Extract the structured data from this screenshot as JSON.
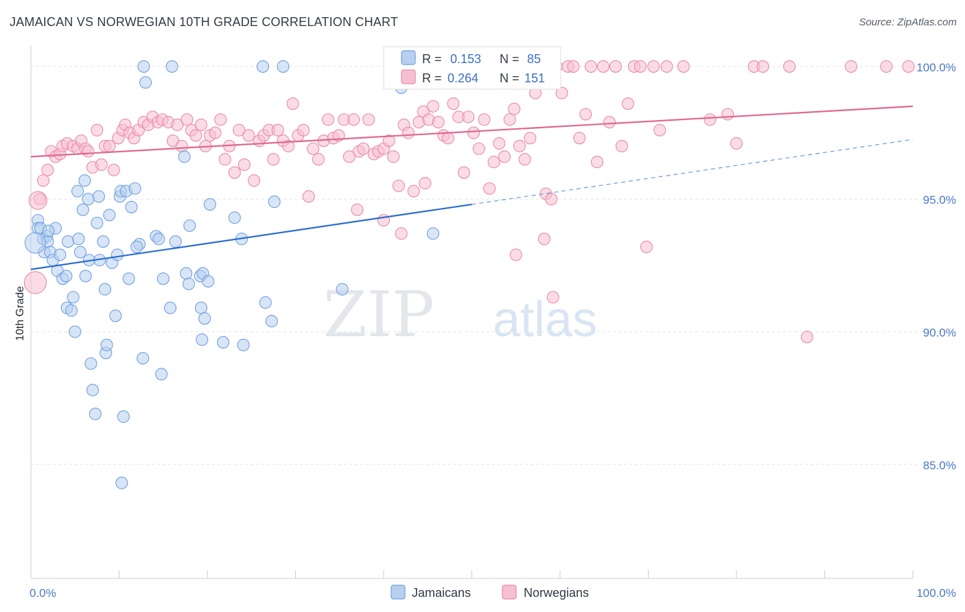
{
  "title": "JAMAICAN VS NORWEGIAN 10TH GRADE CORRELATION CHART",
  "source": "Source: ZipAtlas.com",
  "watermark": {
    "part1": "ZIP",
    "part2": "atlas"
  },
  "legend": {
    "r_label": "R =",
    "n_label": "N =",
    "rows": [
      {
        "name": "Jamaicans",
        "r": "0.153",
        "n": "85",
        "color": "#6fa0de",
        "fill": "#b8d0f0",
        "value_color": "#3d6fc5"
      },
      {
        "name": "Norwegians",
        "r": "0.264",
        "n": "151",
        "color": "#e98aa8",
        "fill": "#f7c0d0",
        "value_color": "#3d6fc5"
      }
    ]
  },
  "chart_data": {
    "type": "scatter",
    "title": "JAMAICAN VS NORWEGIAN 10TH GRADE CORRELATION CHART",
    "xlabel": "",
    "ylabel": "10th Grade",
    "xlim": [
      0,
      100
    ],
    "ylim": [
      80.7,
      100.8
    ],
    "x_tick_labels": [
      {
        "value": 0,
        "label": "0.0%"
      },
      {
        "value": 100,
        "label": "100.0%"
      }
    ],
    "y_tick_labels": [
      {
        "value": 100,
        "label": "100.0%"
      },
      {
        "value": 95,
        "label": "95.0%"
      },
      {
        "value": 90,
        "label": "90.0%"
      },
      {
        "value": 85,
        "label": "85.0%"
      }
    ],
    "grid": true,
    "series": [
      {
        "name": "Jamaicans",
        "color": "#6fa0de",
        "fill": "#b8d0f0",
        "trend": {
          "x": [
            0,
            50
          ],
          "y": [
            92.35,
            94.8
          ],
          "dash_to": [
            100,
            97.25
          ]
        },
        "points": [
          [
            0.8,
            94.2
          ],
          [
            0.8,
            93.9
          ],
          [
            1.1,
            93.9
          ],
          [
            1.4,
            93.5
          ],
          [
            1.5,
            93.0
          ],
          [
            1.8,
            93.6
          ],
          [
            1.9,
            93.4
          ],
          [
            2.2,
            93.0
          ],
          [
            2.5,
            92.7
          ],
          [
            2.8,
            93.9
          ],
          [
            3.0,
            92.3
          ],
          [
            3.3,
            92.9
          ],
          [
            3.6,
            92.0
          ],
          [
            4.0,
            92.1
          ],
          [
            4.1,
            90.9
          ],
          [
            4.2,
            93.4
          ],
          [
            4.6,
            90.8
          ],
          [
            4.8,
            91.3
          ],
          [
            5.0,
            90.0
          ],
          [
            5.3,
            95.3
          ],
          [
            5.4,
            93.5
          ],
          [
            5.6,
            93.0
          ],
          [
            5.9,
            94.6
          ],
          [
            6.1,
            95.7
          ],
          [
            6.2,
            92.1
          ],
          [
            6.6,
            92.7
          ],
          [
            6.8,
            88.8
          ],
          [
            7.0,
            87.8
          ],
          [
            7.3,
            86.9
          ],
          [
            7.5,
            94.1
          ],
          [
            7.7,
            95.1
          ],
          [
            7.8,
            92.7
          ],
          [
            8.2,
            93.4
          ],
          [
            8.4,
            91.6
          ],
          [
            8.5,
            89.2
          ],
          [
            8.6,
            89.5
          ],
          [
            8.9,
            94.4
          ],
          [
            9.2,
            92.6
          ],
          [
            9.6,
            90.6
          ],
          [
            9.8,
            92.9
          ],
          [
            10.1,
            95.1
          ],
          [
            10.2,
            95.3
          ],
          [
            10.3,
            84.3
          ],
          [
            10.5,
            86.8
          ],
          [
            10.8,
            95.3
          ],
          [
            11.1,
            92.0
          ],
          [
            11.4,
            94.7
          ],
          [
            11.8,
            95.4
          ],
          [
            12.3,
            93.3
          ],
          [
            12.7,
            89.0
          ],
          [
            12.8,
            100.0
          ],
          [
            13.0,
            99.4
          ],
          [
            14.2,
            93.6
          ],
          [
            14.5,
            93.5
          ],
          [
            14.8,
            88.4
          ],
          [
            15.0,
            92.0
          ],
          [
            15.8,
            90.9
          ],
          [
            16.0,
            100.0
          ],
          [
            16.4,
            93.4
          ],
          [
            17.4,
            96.6
          ],
          [
            17.6,
            92.2
          ],
          [
            17.9,
            91.8
          ],
          [
            19.2,
            92.1
          ],
          [
            19.3,
            90.9
          ],
          [
            19.5,
            92.2
          ],
          [
            19.7,
            90.5
          ],
          [
            19.4,
            89.7
          ],
          [
            20.1,
            91.9
          ],
          [
            20.3,
            94.8
          ],
          [
            21.8,
            89.6
          ],
          [
            23.1,
            94.3
          ],
          [
            23.9,
            93.5
          ],
          [
            24.1,
            89.5
          ],
          [
            26.3,
            100.0
          ],
          [
            26.6,
            91.1
          ],
          [
            27.3,
            90.4
          ],
          [
            27.6,
            94.9
          ],
          [
            28.6,
            100.0
          ],
          [
            35.3,
            91.6
          ],
          [
            45.6,
            93.7
          ],
          [
            42.0,
            99.2
          ],
          [
            2.0,
            93.8
          ],
          [
            6.5,
            95.0
          ],
          [
            12.0,
            93.2
          ],
          [
            18.0,
            94.0
          ]
        ]
      },
      {
        "name": "Norwegians",
        "color": "#e98aa8",
        "fill": "#f7c0d0",
        "trend": {
          "x": [
            0,
            100
          ],
          "y": [
            96.6,
            98.5
          ]
        },
        "points": [
          [
            1.0,
            95.0
          ],
          [
            1.4,
            95.7
          ],
          [
            1.9,
            96.1
          ],
          [
            2.3,
            96.8
          ],
          [
            2.8,
            96.6
          ],
          [
            3.3,
            96.7
          ],
          [
            3.6,
            97.0
          ],
          [
            4.1,
            97.1
          ],
          [
            4.8,
            97.0
          ],
          [
            5.3,
            96.9
          ],
          [
            5.7,
            97.2
          ],
          [
            6.2,
            96.9
          ],
          [
            6.5,
            96.8
          ],
          [
            7.0,
            96.2
          ],
          [
            7.5,
            97.6
          ],
          [
            8.0,
            96.3
          ],
          [
            8.4,
            97.0
          ],
          [
            8.9,
            97.0
          ],
          [
            9.4,
            96.1
          ],
          [
            9.9,
            97.3
          ],
          [
            10.4,
            97.6
          ],
          [
            10.7,
            97.8
          ],
          [
            11.2,
            97.5
          ],
          [
            11.7,
            97.3
          ],
          [
            12.2,
            97.6
          ],
          [
            12.8,
            97.9
          ],
          [
            13.3,
            97.8
          ],
          [
            13.8,
            98.1
          ],
          [
            14.4,
            97.9
          ],
          [
            14.9,
            98.0
          ],
          [
            15.6,
            97.9
          ],
          [
            16.1,
            97.2
          ],
          [
            16.6,
            97.8
          ],
          [
            17.1,
            97.0
          ],
          [
            17.7,
            98.0
          ],
          [
            18.2,
            97.6
          ],
          [
            18.7,
            97.4
          ],
          [
            19.3,
            97.8
          ],
          [
            19.8,
            97.0
          ],
          [
            20.3,
            97.4
          ],
          [
            20.9,
            97.5
          ],
          [
            21.5,
            98.0
          ],
          [
            22.0,
            96.5
          ],
          [
            22.5,
            97.0
          ],
          [
            23.1,
            96.0
          ],
          [
            23.6,
            97.6
          ],
          [
            24.2,
            96.3
          ],
          [
            24.7,
            97.4
          ],
          [
            25.3,
            95.7
          ],
          [
            25.9,
            97.2
          ],
          [
            26.4,
            97.4
          ],
          [
            27.0,
            97.6
          ],
          [
            27.5,
            96.5
          ],
          [
            28.0,
            97.6
          ],
          [
            28.6,
            97.2
          ],
          [
            29.2,
            97.0
          ],
          [
            29.7,
            98.6
          ],
          [
            30.3,
            97.4
          ],
          [
            30.9,
            97.6
          ],
          [
            31.5,
            95.1
          ],
          [
            32.0,
            96.9
          ],
          [
            32.6,
            96.5
          ],
          [
            33.2,
            97.2
          ],
          [
            33.7,
            98.0
          ],
          [
            34.3,
            97.3
          ],
          [
            34.9,
            97.4
          ],
          [
            35.5,
            98.0
          ],
          [
            36.1,
            96.6
          ],
          [
            36.6,
            98.0
          ],
          [
            37.2,
            96.8
          ],
          [
            37.7,
            96.9
          ],
          [
            38.3,
            98.0
          ],
          [
            38.9,
            96.7
          ],
          [
            39.4,
            96.8
          ],
          [
            40.0,
            96.9
          ],
          [
            40.6,
            97.2
          ],
          [
            41.1,
            96.6
          ],
          [
            41.7,
            95.5
          ],
          [
            42.3,
            97.8
          ],
          [
            42.8,
            97.5
          ],
          [
            43.4,
            95.3
          ],
          [
            44.0,
            97.9
          ],
          [
            44.5,
            98.3
          ],
          [
            45.1,
            98.0
          ],
          [
            45.6,
            98.5
          ],
          [
            46.2,
            97.9
          ],
          [
            46.8,
            97.4
          ],
          [
            47.3,
            97.3
          ],
          [
            47.9,
            98.6
          ],
          [
            48.5,
            98.1
          ],
          [
            49.1,
            96.0
          ],
          [
            49.6,
            98.1
          ],
          [
            50.2,
            97.5
          ],
          [
            50.8,
            96.9
          ],
          [
            51.4,
            98.0
          ],
          [
            52.0,
            95.4
          ],
          [
            52.5,
            96.4
          ],
          [
            53.1,
            97.1
          ],
          [
            53.7,
            96.6
          ],
          [
            54.3,
            98.0
          ],
          [
            54.8,
            98.4
          ],
          [
            55.4,
            97.0
          ],
          [
            56.0,
            96.5
          ],
          [
            56.6,
            97.3
          ],
          [
            57.2,
            99.0
          ],
          [
            57.8,
            100.0
          ],
          [
            58.4,
            95.2
          ],
          [
            59.0,
            95.0
          ],
          [
            59.6,
            100.0
          ],
          [
            60.2,
            99.0
          ],
          [
            60.9,
            100.0
          ],
          [
            61.5,
            100.0
          ],
          [
            62.2,
            97.3
          ],
          [
            62.9,
            98.2
          ],
          [
            63.5,
            100.0
          ],
          [
            64.2,
            96.4
          ],
          [
            64.9,
            100.0
          ],
          [
            65.6,
            97.9
          ],
          [
            66.3,
            100.0
          ],
          [
            67.0,
            97.0
          ],
          [
            67.7,
            98.6
          ],
          [
            68.4,
            100.0
          ],
          [
            69.1,
            100.0
          ],
          [
            69.8,
            93.2
          ],
          [
            70.6,
            100.0
          ],
          [
            71.3,
            97.6
          ],
          [
            72.1,
            100.0
          ],
          [
            74.0,
            100.0
          ],
          [
            77.0,
            98.0
          ],
          [
            79.0,
            98.2
          ],
          [
            80.0,
            97.1
          ],
          [
            82.0,
            100.0
          ],
          [
            83.0,
            100.0
          ],
          [
            86.0,
            100.0
          ],
          [
            88.0,
            89.8
          ],
          [
            93.0,
            100.0
          ],
          [
            97.0,
            100.0
          ],
          [
            99.5,
            100.0
          ],
          [
            59.2,
            91.3
          ],
          [
            58.2,
            93.5
          ],
          [
            55.0,
            92.9
          ],
          [
            42.0,
            93.7
          ],
          [
            40.0,
            94.2
          ],
          [
            37.0,
            94.6
          ],
          [
            44.7,
            95.6
          ]
        ]
      }
    ]
  },
  "bottom_legend": [
    {
      "label": "Jamaicans",
      "fill": "#b8d0f0",
      "stroke": "#6fa0de"
    },
    {
      "label": "Norwegians",
      "fill": "#f7c0d0",
      "stroke": "#e98aa8"
    }
  ]
}
